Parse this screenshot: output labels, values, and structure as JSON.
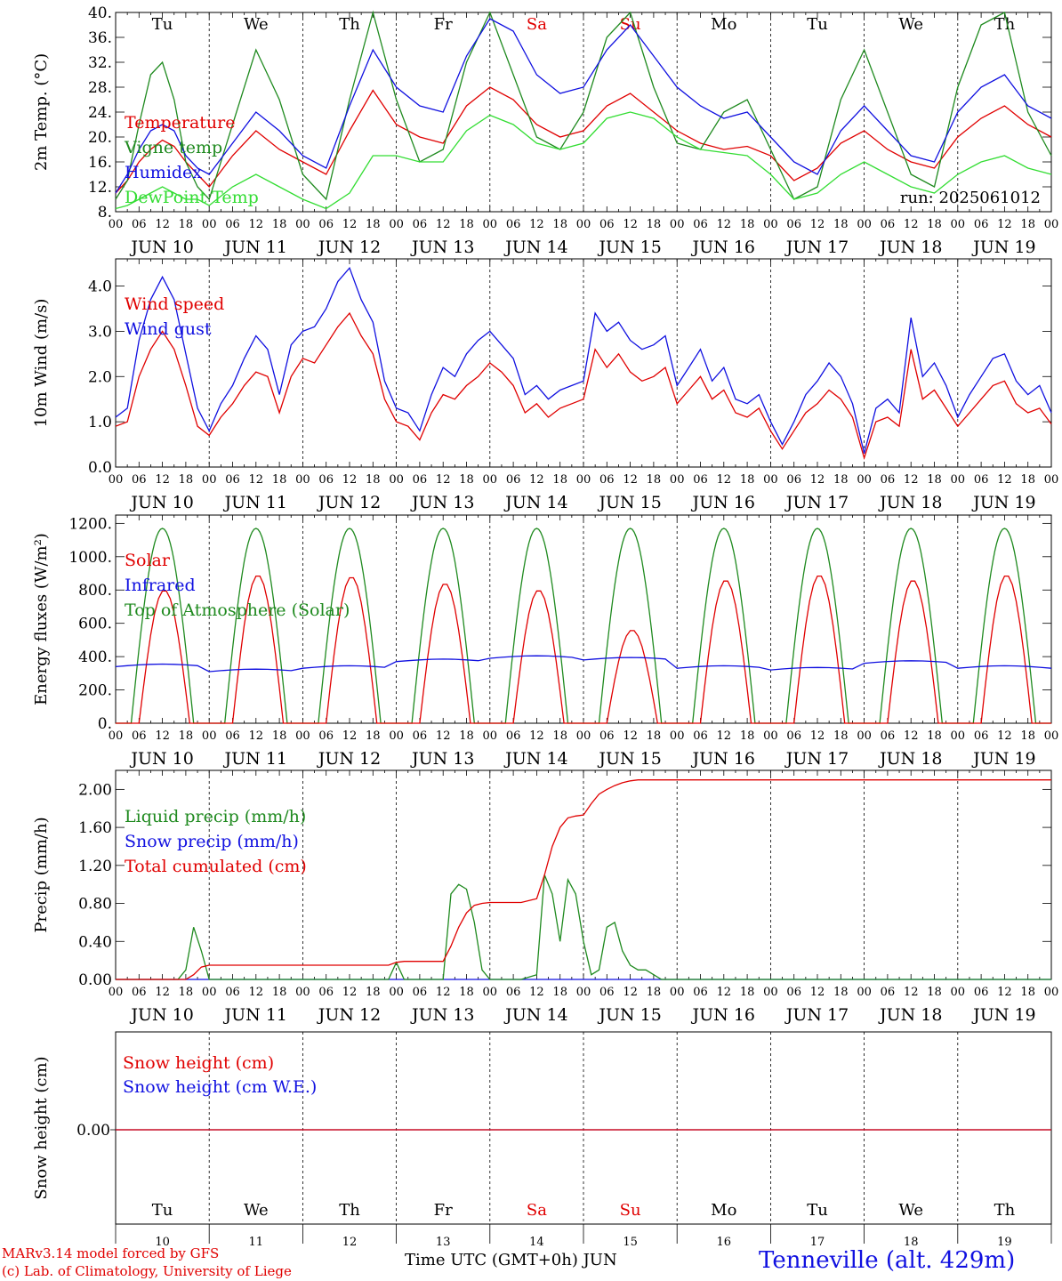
{
  "colors": {
    "red": "#e00000",
    "green": "#1f8a1f",
    "blue": "#1010e0",
    "lightgreen": "#33dd33",
    "black": "#000000"
  },
  "days": [
    "Tu",
    "We",
    "Th",
    "Fr",
    "Sa",
    "Su",
    "Mo",
    "Tu",
    "We",
    "Th"
  ],
  "day_colors": [
    "#000000",
    "#000000",
    "#000000",
    "#000000",
    "#e00000",
    "#e00000",
    "#000000",
    "#000000",
    "#000000",
    "#000000"
  ],
  "date_labels": [
    "JUN 10",
    "JUN 11",
    "JUN 12",
    "JUN 13",
    "JUN 14",
    "JUN 15",
    "JUN 16",
    "JUN 17",
    "JUN 18",
    "JUN 19"
  ],
  "hour_ticks": [
    "00",
    "06",
    "12",
    "18"
  ],
  "hour_end": "00",
  "day_numbers": [
    "10",
    "11",
    "12",
    "13",
    "14",
    "15",
    "16",
    "17",
    "18",
    "19"
  ],
  "chart_data": [
    {
      "type": "line",
      "id": "temp",
      "ylabel": "2m Temp. (°C)",
      "ylim": [
        8,
        40
      ],
      "yticks": [
        "8.",
        "12.",
        "16.",
        "20.",
        "24.",
        "28.",
        "32.",
        "36.",
        "40."
      ],
      "annotation": "run: 2025061012",
      "x_unit": "hours since JUN 10 00 UTC",
      "series": [
        {
          "name": "Temperature",
          "color": "#e00000",
          "x": [
            0,
            3,
            6,
            9,
            12,
            15,
            18,
            21,
            24,
            30,
            36,
            42,
            48,
            54,
            60,
            66,
            72,
            78,
            84,
            90,
            96,
            102,
            108,
            114,
            120,
            126,
            132,
            138,
            144,
            150,
            156,
            162,
            168,
            174,
            180,
            186,
            192,
            198,
            204,
            210,
            216,
            222,
            228,
            234,
            240
          ],
          "y": [
            11,
            13,
            16,
            18,
            19.5,
            18.5,
            16,
            14,
            12,
            17,
            21,
            18,
            16,
            14,
            21,
            27.5,
            22,
            20,
            19,
            25,
            28,
            26,
            22,
            20,
            21,
            25,
            27,
            24,
            21,
            19,
            18,
            18.5,
            17,
            13,
            15,
            19,
            21,
            18,
            16,
            15,
            20,
            23,
            25,
            22,
            20
          ]
        },
        {
          "name": "Vigne temp",
          "color": "#1f8a1f",
          "x": [
            0,
            3,
            6,
            9,
            12,
            15,
            18,
            21,
            24,
            30,
            36,
            42,
            48,
            54,
            60,
            66,
            72,
            78,
            84,
            90,
            96,
            102,
            108,
            114,
            120,
            126,
            132,
            138,
            144,
            150,
            156,
            162,
            168,
            174,
            180,
            186,
            192,
            198,
            204,
            210,
            216,
            222,
            228,
            234,
            240
          ],
          "y": [
            10,
            13,
            22,
            30,
            32,
            26,
            16,
            12,
            10,
            22,
            34,
            26,
            14,
            10,
            26,
            40,
            26,
            16,
            18,
            32,
            40,
            30,
            20,
            18,
            24,
            36,
            40,
            28,
            19,
            18,
            24,
            26,
            18,
            10,
            12,
            26,
            34,
            24,
            14,
            12,
            28,
            38,
            40,
            24,
            17
          ]
        },
        {
          "name": "Humidex",
          "color": "#1010e0",
          "x": [
            0,
            3,
            6,
            9,
            12,
            15,
            18,
            21,
            24,
            30,
            36,
            42,
            48,
            54,
            60,
            66,
            72,
            78,
            84,
            90,
            96,
            102,
            108,
            114,
            120,
            126,
            132,
            138,
            144,
            150,
            156,
            162,
            168,
            174,
            180,
            186,
            192,
            198,
            204,
            210,
            216,
            222,
            228,
            234,
            240
          ],
          "y": [
            11,
            14,
            18,
            21,
            22,
            21,
            17,
            15,
            14,
            19,
            24,
            21,
            17,
            15,
            25,
            34,
            28,
            25,
            24,
            33,
            39,
            37,
            30,
            27,
            28,
            34,
            38,
            33,
            28,
            25,
            23,
            24,
            20,
            16,
            14,
            21,
            25,
            21,
            17,
            16,
            24,
            28,
            30,
            25,
            23
          ]
        },
        {
          "name": "DewPoint Temp",
          "color": "#33dd33",
          "x": [
            0,
            3,
            6,
            9,
            12,
            15,
            18,
            21,
            24,
            30,
            36,
            42,
            48,
            54,
            60,
            66,
            72,
            78,
            84,
            90,
            96,
            102,
            108,
            114,
            120,
            126,
            132,
            138,
            144,
            150,
            156,
            162,
            168,
            174,
            180,
            186,
            192,
            198,
            204,
            210,
            216,
            222,
            228,
            234,
            240
          ],
          "y": [
            8.5,
            9,
            10,
            11,
            12,
            11,
            10,
            10,
            9,
            12,
            14,
            12,
            10,
            8.5,
            11,
            17,
            17,
            16,
            16,
            21,
            23.5,
            22,
            19,
            18,
            19,
            23,
            24,
            23,
            20,
            18,
            17.5,
            17,
            14,
            10,
            11,
            14,
            16,
            14,
            12,
            11,
            14,
            16,
            17,
            15,
            14
          ]
        }
      ]
    },
    {
      "type": "line",
      "id": "wind",
      "ylabel": "10m Wind (m/s)",
      "ylim": [
        0,
        4.6
      ],
      "yticks": [
        "0.0",
        "1.0",
        "2.0",
        "3.0",
        "4.0"
      ],
      "x_unit": "hours since JUN 10 00 UTC",
      "series": [
        {
          "name": "Wind speed",
          "color": "#e00000",
          "x": [
            0,
            3,
            6,
            9,
            12,
            15,
            18,
            21,
            24,
            27,
            30,
            33,
            36,
            39,
            42,
            45,
            48,
            51,
            54,
            57,
            60,
            63,
            66,
            69,
            72,
            75,
            78,
            81,
            84,
            87,
            90,
            93,
            96,
            99,
            102,
            105,
            108,
            111,
            114,
            117,
            120,
            123,
            126,
            129,
            132,
            135,
            138,
            141,
            144,
            147,
            150,
            153,
            156,
            159,
            162,
            165,
            168,
            171,
            174,
            177,
            180,
            183,
            186,
            189,
            192,
            195,
            198,
            201,
            204,
            207,
            210,
            213,
            216,
            219,
            222,
            225,
            228,
            231,
            234,
            237,
            240
          ],
          "y": [
            0.9,
            1.0,
            2.0,
            2.6,
            3.0,
            2.6,
            1.8,
            0.9,
            0.7,
            1.1,
            1.4,
            1.8,
            2.1,
            2.0,
            1.2,
            2.0,
            2.4,
            2.3,
            2.7,
            3.1,
            3.4,
            2.9,
            2.5,
            1.5,
            1.0,
            0.9,
            0.6,
            1.2,
            1.6,
            1.5,
            1.8,
            2.0,
            2.3,
            2.1,
            1.8,
            1.2,
            1.4,
            1.1,
            1.3,
            1.4,
            1.5,
            2.6,
            2.2,
            2.5,
            2.1,
            1.9,
            2.0,
            2.2,
            1.4,
            1.7,
            2.0,
            1.5,
            1.7,
            1.2,
            1.1,
            1.3,
            0.8,
            0.4,
            0.8,
            1.2,
            1.4,
            1.7,
            1.5,
            1.1,
            0.2,
            1.0,
            1.1,
            0.9,
            2.6,
            1.5,
            1.7,
            1.3,
            0.9,
            1.2,
            1.5,
            1.8,
            1.9,
            1.4,
            1.2,
            1.3,
            0.95
          ]
        },
        {
          "name": "Wind gust",
          "color": "#1010e0",
          "x": [
            0,
            3,
            6,
            9,
            12,
            15,
            18,
            21,
            24,
            27,
            30,
            33,
            36,
            39,
            42,
            45,
            48,
            51,
            54,
            57,
            60,
            63,
            66,
            69,
            72,
            75,
            78,
            81,
            84,
            87,
            90,
            93,
            96,
            99,
            102,
            105,
            108,
            111,
            114,
            117,
            120,
            123,
            126,
            129,
            132,
            135,
            138,
            141,
            144,
            147,
            150,
            153,
            156,
            159,
            162,
            165,
            168,
            171,
            174,
            177,
            180,
            183,
            186,
            189,
            192,
            195,
            198,
            201,
            204,
            207,
            210,
            213,
            216,
            219,
            222,
            225,
            228,
            231,
            234,
            237,
            240
          ],
          "y": [
            1.1,
            1.3,
            2.8,
            3.7,
            4.2,
            3.7,
            2.5,
            1.3,
            0.8,
            1.4,
            1.8,
            2.4,
            2.9,
            2.6,
            1.6,
            2.7,
            3.0,
            3.1,
            3.5,
            4.1,
            4.4,
            3.7,
            3.2,
            1.9,
            1.3,
            1.2,
            0.8,
            1.6,
            2.2,
            2.0,
            2.5,
            2.8,
            3.0,
            2.7,
            2.4,
            1.6,
            1.8,
            1.5,
            1.7,
            1.8,
            1.9,
            3.4,
            3.0,
            3.2,
            2.8,
            2.6,
            2.7,
            2.9,
            1.8,
            2.2,
            2.6,
            1.9,
            2.2,
            1.5,
            1.4,
            1.6,
            1.0,
            0.5,
            1.0,
            1.6,
            1.9,
            2.3,
            2.0,
            1.4,
            0.3,
            1.3,
            1.5,
            1.2,
            3.3,
            2.0,
            2.3,
            1.8,
            1.1,
            1.6,
            2.0,
            2.4,
            2.5,
            1.9,
            1.6,
            1.8,
            1.2
          ]
        }
      ]
    },
    {
      "type": "line",
      "id": "energy",
      "ylabel": "Energy fluxes (W/m²)",
      "ylim": [
        0,
        1250
      ],
      "yticks": [
        "0.",
        "200.",
        "400.",
        "600.",
        "800.",
        "1000.",
        "1200."
      ],
      "x_unit": "hours since JUN 10 00 UTC",
      "solar_peaks": [
        800,
        890,
        880,
        840,
        800,
        560,
        860,
        890,
        860,
        890
      ],
      "toa_peak": 1170,
      "infrared_daily": [
        340,
        310,
        330,
        370,
        390,
        380,
        330,
        320,
        360,
        330
      ],
      "series": [
        {
          "name": "Solar",
          "color": "#e00000"
        },
        {
          "name": "Infrared",
          "color": "#1010e0"
        },
        {
          "name": "Top of Atmosphere (Solar)",
          "color": "#1f8a1f"
        }
      ]
    },
    {
      "type": "line",
      "id": "precip",
      "ylabel": "Precip (mm/h)",
      "ylim": [
        0,
        2.2
      ],
      "yticks": [
        "0.00",
        "0.40",
        "0.80",
        "1.20",
        "1.60",
        "2.00"
      ],
      "x_unit": "hours since JUN 10 00 UTC",
      "series": [
        {
          "name": "Liquid precip (mm/h)",
          "color": "#1f8a1f",
          "x": [
            0,
            16,
            18,
            20,
            22,
            24,
            70,
            72,
            74,
            84,
            86,
            88,
            90,
            92,
            94,
            96,
            104,
            108,
            110,
            112,
            114,
            116,
            118,
            120,
            122,
            124,
            126,
            128,
            130,
            132,
            134,
            136,
            138,
            140,
            240
          ],
          "y": [
            0,
            0,
            0.1,
            0.55,
            0.3,
            0,
            0,
            0.18,
            0,
            0,
            0.9,
            1.0,
            0.95,
            0.6,
            0.1,
            0,
            0,
            0.05,
            1.1,
            0.9,
            0.4,
            1.05,
            0.9,
            0.4,
            0.05,
            0.1,
            0.55,
            0.6,
            0.3,
            0.15,
            0.1,
            0.1,
            0.05,
            0,
            0
          ]
        },
        {
          "name": "Snow precip (mm/h)",
          "color": "#1010e0",
          "x": [
            0,
            240
          ],
          "y": [
            0,
            0
          ]
        },
        {
          "name": "Total cumulated (cm)",
          "color": "#e00000",
          "x": [
            0,
            18,
            20,
            22,
            24,
            70,
            72,
            74,
            84,
            86,
            88,
            90,
            92,
            94,
            96,
            100,
            104,
            108,
            110,
            112,
            114,
            116,
            118,
            120,
            122,
            124,
            126,
            128,
            130,
            132,
            134,
            136,
            240
          ],
          "y": [
            0,
            0,
            0.05,
            0.13,
            0.15,
            0.15,
            0.18,
            0.19,
            0.19,
            0.35,
            0.55,
            0.7,
            0.78,
            0.8,
            0.81,
            0.81,
            0.81,
            0.85,
            1.1,
            1.4,
            1.6,
            1.7,
            1.72,
            1.73,
            1.85,
            1.95,
            2.0,
            2.04,
            2.07,
            2.09,
            2.1,
            2.1,
            2.1
          ]
        }
      ]
    },
    {
      "type": "line",
      "id": "snow",
      "ylabel": "Snow height (cm)",
      "yticks": [
        "0.00"
      ],
      "x_unit": "hours since JUN 10 00 UTC",
      "series": [
        {
          "name": "Snow height (cm)",
          "color": "#e00000",
          "x": [
            0,
            240
          ],
          "y": [
            0,
            0
          ]
        },
        {
          "name": "Snow height (cm W.E.)",
          "color": "#1010e0",
          "x": [
            0,
            240
          ],
          "y": [
            0,
            0
          ]
        }
      ]
    }
  ],
  "footer": {
    "model": "MARv3.14 model forced by GFS",
    "credit": "(c) Lab. of Climatology, University of Liege",
    "xlabel": "Time UTC (GMT+0h) JUN",
    "station": "Tenneville (alt. 429m)"
  }
}
